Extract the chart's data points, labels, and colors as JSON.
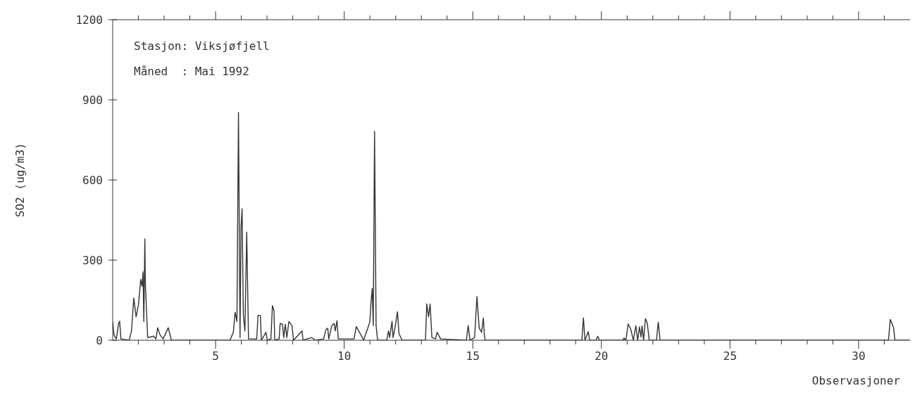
{
  "chart_data": {
    "type": "line",
    "xlabel": "Observasjoner",
    "ylabel": "SO2 (ug/m3)",
    "annotations": [
      "Stasjon: Viksjøfjell",
      "Måned  : Mai 1992"
    ],
    "xlim": [
      1,
      32
    ],
    "ylim": [
      0,
      1200
    ],
    "xticks": [
      {
        "value": 2,
        "label": null
      },
      {
        "value": 3,
        "label": null
      },
      {
        "value": 4,
        "label": null
      },
      5,
      {
        "value": 6,
        "label": null
      },
      {
        "value": 7,
        "label": null
      },
      {
        "value": 8,
        "label": null
      },
      {
        "value": 9,
        "label": null
      },
      10,
      {
        "value": 11,
        "label": null
      },
      {
        "value": 12,
        "label": null
      },
      {
        "value": 13,
        "label": null
      },
      {
        "value": 14,
        "label": null
      },
      15,
      {
        "value": 16,
        "label": null
      },
      {
        "value": 17,
        "label": null
      },
      {
        "value": 18,
        "label": null
      },
      {
        "value": 19,
        "label": null
      },
      20,
      {
        "value": 21,
        "label": null
      },
      {
        "value": 22,
        "label": null
      },
      {
        "value": 23,
        "label": null
      },
      {
        "value": 24,
        "label": null
      },
      25,
      {
        "value": 26,
        "label": null
      },
      {
        "value": 27,
        "label": null
      },
      {
        "value": 28,
        "label": null
      },
      {
        "value": 29,
        "label": null
      },
      30,
      {
        "value": 31,
        "label": null
      }
    ],
    "yticks": [
      0,
      300,
      600,
      900,
      1200
    ],
    "grid": false,
    "legend": false,
    "marker": "none",
    "line_style": "solid",
    "series": [
      {
        "color": "#333333",
        "x": [
          1.0,
          1.05,
          1.14,
          1.23,
          1.27,
          1.32,
          1.64,
          1.73,
          1.82,
          1.91,
          2.0,
          2.09,
          2.14,
          2.18,
          2.21,
          2.25,
          2.27,
          2.36,
          2.59,
          2.68,
          2.75,
          2.84,
          2.96,
          3.16,
          3.28,
          5.56,
          5.69,
          5.76,
          5.83,
          5.89,
          5.95,
          5.99,
          6.03,
          6.08,
          6.14,
          6.21,
          6.28,
          6.6,
          6.65,
          6.74,
          6.78,
          6.96,
          7.01,
          7.15,
          7.21,
          7.27,
          7.3,
          7.47,
          7.51,
          7.6,
          7.65,
          7.71,
          7.77,
          7.85,
          7.97,
          8.03,
          8.36,
          8.4,
          8.74,
          8.88,
          9.2,
          9.29,
          9.36,
          9.4,
          9.52,
          9.61,
          9.65,
          9.72,
          9.77,
          10.38,
          10.47,
          10.56,
          10.65,
          10.76,
          10.84,
          10.9,
          11.0,
          11.04,
          11.09,
          11.13,
          11.18,
          11.24,
          11.3,
          11.66,
          11.72,
          11.77,
          11.86,
          11.9,
          11.99,
          12.07,
          12.13,
          12.25,
          13.16,
          13.21,
          13.28,
          13.34,
          13.41,
          13.55,
          13.61,
          13.75,
          14.75,
          14.82,
          14.89,
          15.07,
          15.16,
          15.25,
          15.34,
          15.41,
          15.45,
          15.48,
          19.24,
          19.3,
          19.36,
          19.49,
          19.54,
          19.79,
          19.86,
          19.92,
          20.83,
          20.88,
          20.95,
          21.04,
          21.14,
          21.24,
          21.34,
          21.41,
          21.48,
          21.54,
          21.58,
          21.64,
          21.71,
          21.78,
          21.86,
          22.14,
          22.21,
          22.28,
          31.16,
          31.23,
          31.36,
          31.41,
          32.0
        ],
        "values": [
          68,
          20,
          5,
          63,
          71,
          5,
          0,
          35,
          158,
          88,
          132,
          228,
          202,
          256,
          70,
          379,
          210,
          10,
          15,
          5,
          47,
          20,
          5,
          47,
          0,
          0,
          30,
          105,
          70,
          853,
          10,
          422,
          492,
          93,
          35,
          405,
          5,
          5,
          93,
          93,
          0,
          30,
          0,
          5,
          130,
          110,
          0,
          5,
          63,
          60,
          10,
          60,
          10,
          70,
          55,
          0,
          35,
          0,
          10,
          0,
          5,
          40,
          45,
          5,
          55,
          63,
          35,
          73,
          5,
          5,
          51,
          35,
          20,
          0,
          25,
          40,
          70,
          140,
          194,
          55,
          782,
          55,
          0,
          0,
          35,
          10,
          71,
          10,
          55,
          107,
          25,
          0,
          0,
          136,
          88,
          136,
          10,
          5,
          30,
          5,
          0,
          55,
          0,
          10,
          163,
          45,
          30,
          84,
          20,
          0,
          0,
          84,
          0,
          32,
          0,
          0,
          15,
          0,
          0,
          8,
          0,
          61,
          42,
          0,
          54,
          0,
          50,
          12,
          54,
          0,
          81,
          66,
          0,
          0,
          68,
          0,
          0,
          78,
          47,
          0,
          0
        ]
      }
    ]
  }
}
